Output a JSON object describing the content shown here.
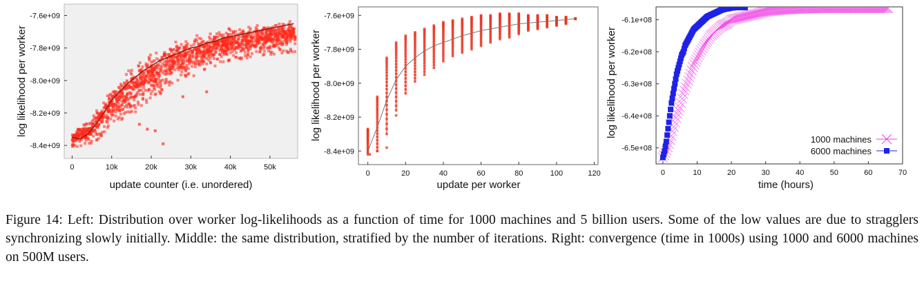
{
  "chart_data": [
    {
      "type": "scatter",
      "xlabel": "update counter (i.e. unordered)",
      "ylabel": "log likelihood per worker",
      "xlim": [
        -2000,
        57000
      ],
      "ylim": [
        -8480000000.0,
        -7530000000.0
      ],
      "x_ticks": [
        0,
        10000,
        20000,
        30000,
        40000,
        50000
      ],
      "x_tick_labels": [
        "0",
        "10k",
        "20k",
        "30k",
        "40k",
        "50k"
      ],
      "y_ticks": [
        -8400000000.0,
        -8200000000.0,
        -8000000000.0,
        -7800000000.0,
        -7600000000.0
      ],
      "y_tick_labels": [
        "-8.4e+09",
        "-8.2e+09",
        "-8.0e+09",
        "-7.8e+09",
        "-7.6e+09"
      ],
      "background": "#f0f0f0",
      "point_color": "#ff2a1c",
      "trend_color": "#8a1a12",
      "trend": {
        "x": [
          0,
          2000,
          4000,
          6000,
          8000,
          10000,
          12000,
          14000,
          16000,
          18000,
          20000,
          22000,
          24000,
          26000,
          28000,
          30000,
          32000,
          34000,
          36000,
          38000,
          40000,
          42000,
          44000,
          46000,
          48000,
          50000,
          52000,
          54000,
          56000
        ],
        "y": [
          -8350000000.0,
          -8360000000.0,
          -8330000000.0,
          -8270000000.0,
          -8200000000.0,
          -8120000000.0,
          -8070000000.0,
          -8020000000.0,
          -7980000000.0,
          -7940000000.0,
          -7910000000.0,
          -7880000000.0,
          -7860000000.0,
          -7840000000.0,
          -7820000000.0,
          -7800000000.0,
          -7790000000.0,
          -7770000000.0,
          -7760000000.0,
          -7740000000.0,
          -7730000000.0,
          -7720000000.0,
          -7710000000.0,
          -7700000000.0,
          -7690000000.0,
          -7680000000.0,
          -7670000000.0,
          -7660000000.0,
          -7650000000.0
        ]
      },
      "spread": {
        "x": [
          0,
          5000,
          10000,
          15000,
          20000,
          25000,
          30000,
          35000,
          40000,
          45000,
          50000,
          56000
        ],
        "upper": [
          -8300000000.0,
          -8200000000.0,
          -8000000000.0,
          -7860000000.0,
          -7790000000.0,
          -7730000000.0,
          -7700000000.0,
          -7670000000.0,
          -7650000000.0,
          -7630000000.0,
          -7610000000.0,
          -7600000000.0
        ],
        "lower": [
          -8410000000.0,
          -8400000000.0,
          -8280000000.0,
          -8220000000.0,
          -8120000000.0,
          -8040000000.0,
          -7980000000.0,
          -7930000000.0,
          -7880000000.0,
          -7860000000.0,
          -7840000000.0,
          -7830000000.0
        ]
      },
      "outliers": [
        [
          23000,
          -8390000000.0
        ],
        [
          21000,
          -8310000000.0
        ],
        [
          17000,
          -8270000000.0
        ],
        [
          28000,
          -8100000000.0
        ],
        [
          34000,
          -8070000000.0
        ],
        [
          19000,
          -8300000000.0
        ]
      ]
    },
    {
      "type": "scatter",
      "xlabel": "update per worker",
      "ylabel": "log likelihood per worker",
      "xlim": [
        -5,
        122
      ],
      "ylim": [
        -8480000000.0,
        -7550000000.0
      ],
      "x_ticks": [
        0,
        20,
        40,
        60,
        80,
        100,
        120
      ],
      "x_tick_labels": [
        "0",
        "20",
        "40",
        "60",
        "80",
        "100",
        "120"
      ],
      "y_ticks": [
        -8400000000.0,
        -8200000000.0,
        -8000000000.0,
        -7800000000.0,
        -7600000000.0
      ],
      "y_tick_labels": [
        "-8.4e+09",
        "-8.2e+09",
        "-8.0e+09",
        "-7.8e+09",
        "-7.6e+09"
      ],
      "point_color": "#e8341f",
      "trend_color": "#777777",
      "columns": {
        "x": [
          0,
          5,
          10,
          15,
          20,
          25,
          30,
          35,
          40,
          45,
          50,
          55,
          60,
          65,
          70,
          75,
          80,
          85,
          90,
          95,
          100,
          105,
          110
        ],
        "top": [
          -8270000000.0,
          -8080000000.0,
          -7850000000.0,
          -7760000000.0,
          -7720000000.0,
          -7700000000.0,
          -7680000000.0,
          -7660000000.0,
          -7640000000.0,
          -7630000000.0,
          -7620000000.0,
          -7610000000.0,
          -7600000000.0,
          -7600000000.0,
          -7590000000.0,
          -7590000000.0,
          -7590000000.0,
          -7600000000.0,
          -7600000000.0,
          -7600000000.0,
          -7610000000.0,
          -7610000000.0,
          -7620000000.0
        ],
        "bottom": [
          -8420000000.0,
          -8400000000.0,
          -8300000000.0,
          -8160000000.0,
          -8060000000.0,
          -7990000000.0,
          -7950000000.0,
          -7910000000.0,
          -7870000000.0,
          -7840000000.0,
          -7820000000.0,
          -7800000000.0,
          -7780000000.0,
          -7760000000.0,
          -7740000000.0,
          -7730000000.0,
          -7710000000.0,
          -7690000000.0,
          -7680000000.0,
          -7670000000.0,
          -7660000000.0,
          -7650000000.0,
          -7620000000.0
        ]
      },
      "outliers": [
        [
          5,
          -8400000000.0
        ],
        [
          1,
          -8420000000.0
        ],
        [
          10,
          -8380000000.0
        ],
        [
          15,
          -8190000000.0
        ]
      ],
      "trend": {
        "x": [
          0,
          5,
          10,
          15,
          20,
          25,
          30,
          35,
          40,
          50,
          60,
          70,
          80,
          90,
          100,
          110
        ],
        "y": [
          -8400000000.0,
          -8260000000.0,
          -8100000000.0,
          -7980000000.0,
          -7900000000.0,
          -7850000000.0,
          -7810000000.0,
          -7780000000.0,
          -7760000000.0,
          -7720000000.0,
          -7690000000.0,
          -7670000000.0,
          -7650000000.0,
          -7640000000.0,
          -7630000000.0,
          -7620000000.0
        ]
      }
    },
    {
      "type": "line",
      "xlabel": "time (hours)",
      "ylabel": "log likelihood per worker",
      "xlim": [
        -2,
        70
      ],
      "ylim": [
        -655000000.0,
        -606000000.0
      ],
      "x_ticks": [
        0,
        10,
        20,
        30,
        40,
        50,
        60,
        70
      ],
      "x_tick_labels": [
        "0",
        "10",
        "20",
        "30",
        "40",
        "50",
        "60",
        "70"
      ],
      "y_ticks": [
        -650000000.0,
        -640000000.0,
        -630000000.0,
        -620000000.0,
        -610000000.0
      ],
      "y_tick_labels": [
        "-6.5e+08",
        "-6.4e+08",
        "-6.3e+08",
        "-6.2e+08",
        "-6.1e+08"
      ],
      "grid": false,
      "legend_position": "bottom-right",
      "series": [
        {
          "name": "1000 machines",
          "color": "#ee3ee4",
          "marker": "x",
          "x": [
            0,
            1,
            2,
            3,
            4,
            5,
            6,
            7,
            8,
            9,
            10,
            11,
            12,
            13,
            14,
            15,
            16,
            17,
            18,
            19,
            20,
            22,
            24,
            26,
            28,
            30,
            32,
            34,
            36,
            38,
            40,
            42,
            44,
            46,
            48,
            50,
            52,
            54,
            56,
            58,
            60,
            62,
            64,
            66
          ],
          "y": [
            -653000000.0,
            -651000000.0,
            -648000000.0,
            -644000000.0,
            -640000000.0,
            -637000000.0,
            -633000000.0,
            -630000000.0,
            -627000000.0,
            -624000000.0,
            -622000000.0,
            -620000000.0,
            -618000000.0,
            -616500000.0,
            -615000000.0,
            -614000000.0,
            -613000000.0,
            -612000000.0,
            -611500000.0,
            -611000000.0,
            -610000000.0,
            -609500000.0,
            -609000000.0,
            -608500000.0,
            -608000000.0,
            -607500000.0,
            -607200000.0,
            -607000000.0,
            -606800000.0,
            -606700000.0,
            -606600000.0,
            -606500000.0,
            -606500000.0,
            -606400000.0,
            -606400000.0,
            -606400000.0,
            -606400000.0,
            -606400000.0,
            -606400000.0,
            -606400000.0,
            -606400000.0,
            -606400000.0,
            -606400000.0,
            -606400000.0
          ]
        },
        {
          "name": "6000 machines",
          "color": "#1e22e8",
          "marker": "square",
          "x": [
            0,
            0.5,
            1,
            1.5,
            2,
            2.5,
            3,
            3.5,
            4,
            4.5,
            5,
            5.5,
            6,
            6.5,
            7,
            7.5,
            8,
            8.5,
            9,
            9.5,
            10,
            11,
            12,
            13,
            14,
            15,
            16,
            17,
            18,
            19,
            20,
            21,
            22,
            23,
            24
          ],
          "y": [
            -653000000.0,
            -651000000.0,
            -648000000.0,
            -644000000.0,
            -640000000.0,
            -636000000.0,
            -633000000.0,
            -630000000.0,
            -627000000.0,
            -625000000.0,
            -623000000.0,
            -621000000.0,
            -620000000.0,
            -618000000.0,
            -617000000.0,
            -616000000.0,
            -615000000.0,
            -614000000.0,
            -613000000.0,
            -612500000.0,
            -612000000.0,
            -611000000.0,
            -610000000.0,
            -609000000.0,
            -608500000.0,
            -608000000.0,
            -607500000.0,
            -607000000.0,
            -606700000.0,
            -606500000.0,
            -606300000.0,
            -606200000.0,
            -606200000.0,
            -606200000.0,
            -606200000.0
          ]
        }
      ]
    }
  ],
  "caption": "Figure 14: Left: Distribution over worker log-likelihoods as a function of time for 1000 machines and 5 billion users. Some of the low values are due to stragglers synchronizing slowly initially. Middle: the same distribution, stratified by the number of iterations. Right: convergence (time in 1000s) using 1000 and 6000 machines on 500M users."
}
